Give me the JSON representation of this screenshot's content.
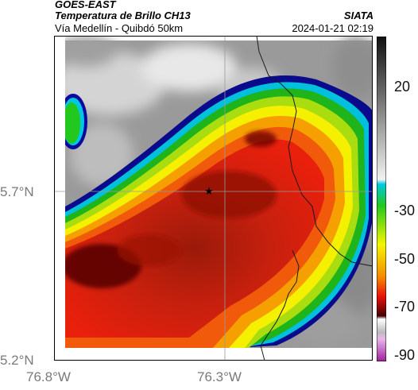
{
  "header": {
    "source": "GOES-EAST",
    "product": "Temperatura de Brillo CH13",
    "region": "Vía Medellín - Quibdó 50km",
    "agency": "SIATA",
    "timestamp": "2024-01-21 02:19"
  },
  "map": {
    "lat_ticks": [
      "5.7°N",
      "5.2°N"
    ],
    "lon_ticks": [
      "76.8°W",
      "76.3°W"
    ],
    "marker_icon": "star-icon",
    "gridlines": true
  },
  "colorbar": {
    "ticks": [
      "20",
      "-30",
      "-50",
      "-70",
      "-90"
    ],
    "range": [
      -95,
      35
    ],
    "colors": {
      "warm": "#f0f0f0",
      "cold_start": "#00c8e0",
      "green": "#22c81e",
      "yellow": "#f5f500",
      "red": "#e8120a",
      "dark_red": "#4a0000",
      "magenta": "#c040c0"
    }
  }
}
